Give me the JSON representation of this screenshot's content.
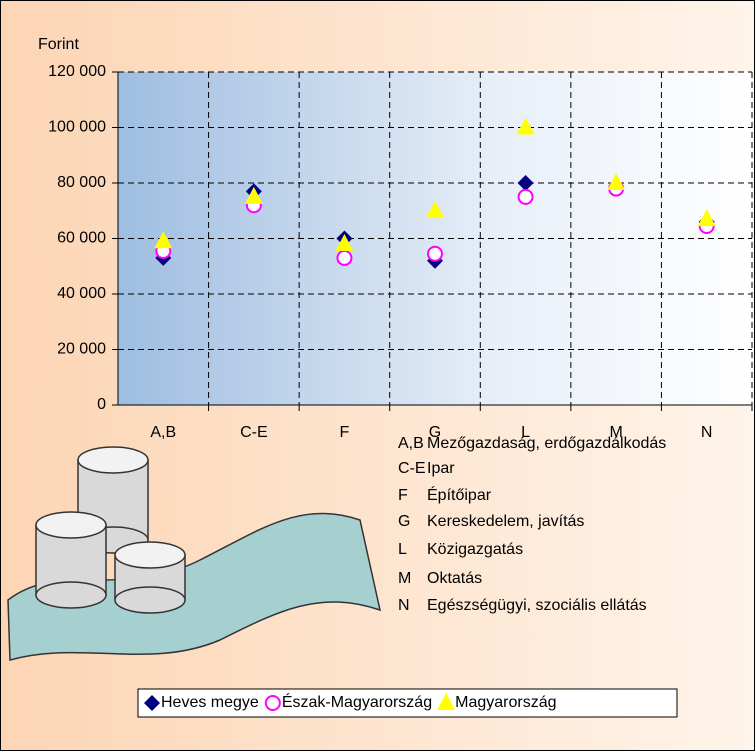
{
  "chart_data": {
    "type": "scatter",
    "y_label": "Forint",
    "categories": [
      "A,B",
      "C-E",
      "F",
      "G",
      "L",
      "M",
      "N"
    ],
    "series": [
      {
        "name": "Heves megye",
        "color": "#000080",
        "marker": "diamond",
        "values": [
          53000,
          77000,
          60000,
          52000,
          80000,
          78000,
          66000
        ]
      },
      {
        "name": "Észak-Magyarország",
        "color": "#ff00ff",
        "marker": "circle",
        "values": [
          55500,
          72000,
          53000,
          54500,
          75000,
          78000,
          64500
        ]
      },
      {
        "name": "Magyarország",
        "color": "#ffff00",
        "marker": "triangle",
        "values": [
          59000,
          75000,
          58000,
          70000,
          100000,
          80000,
          67000
        ]
      }
    ],
    "ylim": [
      0,
      120000
    ],
    "yticks": [
      {
        "value": 0,
        "label": "0"
      },
      {
        "value": 20000,
        "label": "20 000"
      },
      {
        "value": 40000,
        "label": "40 000"
      },
      {
        "value": 60000,
        "label": "60 000"
      },
      {
        "value": 80000,
        "label": "80 000"
      },
      {
        "value": 100000,
        "label": "100 000"
      },
      {
        "value": 120000,
        "label": "120 000"
      }
    ],
    "grid": true,
    "notes": [
      {
        "code": "A,B",
        "text": "Mezőgazdaság, erdőgazdálkodás"
      },
      {
        "code": "C-E",
        "text": "Ipar"
      },
      {
        "code": "F",
        "text": "Építőipar"
      },
      {
        "code": "G",
        "text": "Kereskedelem, javítás"
      },
      {
        "code": "L",
        "text": "Közigazgatás"
      },
      {
        "code": "M",
        "text": "Oktatás"
      },
      {
        "code": "N",
        "text": "Egészségügyi, szociális ellátás"
      }
    ]
  }
}
